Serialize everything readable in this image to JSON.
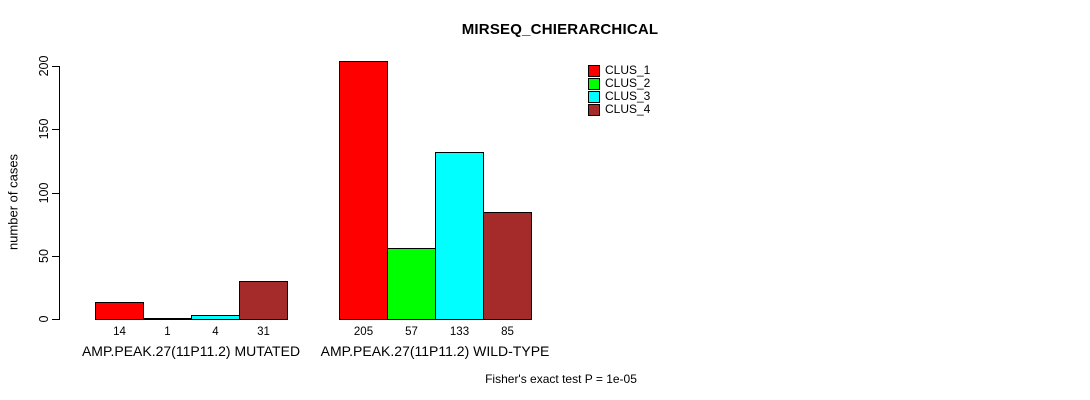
{
  "title": "MIRSEQ_CHIERARCHICAL",
  "ylabel": "number of cases",
  "footer": "Fisher's exact test P = 1e-05",
  "colors": {
    "clus_1": "#FF0000",
    "clus_2": "#00FF00",
    "clus_3": "#00FFFF",
    "clus_4": "#A52A2A",
    "axis": "#000000",
    "background": "#FFFFFF"
  },
  "legend": {
    "items": [
      {
        "label": "CLUS_1",
        "color": "#FF0000"
      },
      {
        "label": "CLUS_2",
        "color": "#00FF00"
      },
      {
        "label": "CLUS_3",
        "color": "#00FFFF"
      },
      {
        "label": "CLUS_4",
        "color": "#A52A2A"
      }
    ]
  },
  "chart_data": {
    "type": "bar",
    "title": "MIRSEQ_CHIERARCHICAL",
    "xlabel": "",
    "ylabel": "number of cases",
    "ylim": [
      0,
      200
    ],
    "yticks": [
      0,
      50,
      100,
      150,
      200
    ],
    "grid": false,
    "legend_position": "top-right",
    "grouped": true,
    "categories": [
      "AMP.PEAK.27(11P11.2) MUTATED",
      "AMP.PEAK.27(11P11.2) WILD-TYPE"
    ],
    "series": [
      {
        "name": "CLUS_1",
        "color": "#FF0000",
        "values": [
          14,
          205
        ]
      },
      {
        "name": "CLUS_2",
        "color": "#00FF00",
        "values": [
          1,
          57
        ]
      },
      {
        "name": "CLUS_3",
        "color": "#00FFFF",
        "values": [
          4,
          133
        ]
      },
      {
        "name": "CLUS_4",
        "color": "#A52A2A",
        "values": [
          31,
          85
        ]
      }
    ],
    "bar_value_labels": [
      [
        "14",
        "1",
        "4",
        "31"
      ],
      [
        "205",
        "57",
        "133",
        "85"
      ]
    ],
    "annotation": "Fisher's exact test P = 1e-05"
  }
}
